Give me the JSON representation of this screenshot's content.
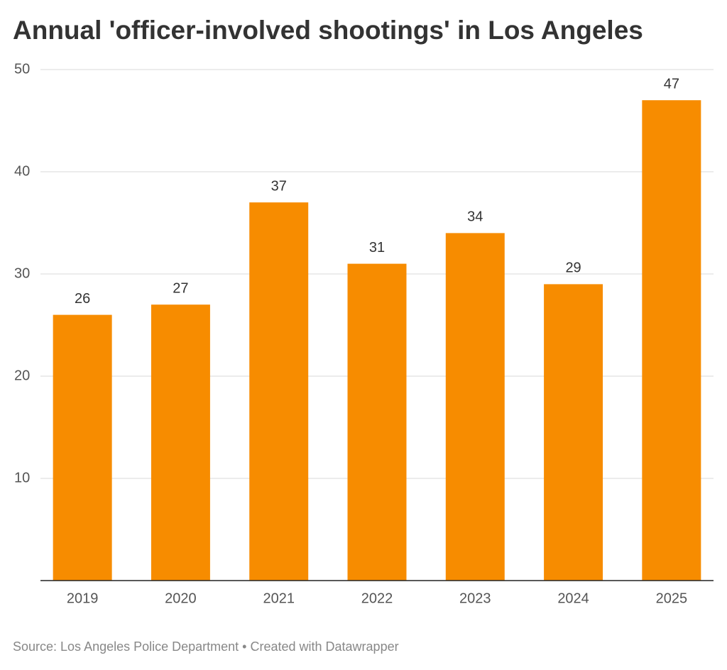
{
  "chart_data": {
    "type": "bar",
    "title": "Annual 'officer-involved shootings' in Los Angeles",
    "categories": [
      "2019",
      "2020",
      "2021",
      "2022",
      "2023",
      "2024",
      "2025"
    ],
    "values": [
      26,
      27,
      37,
      31,
      34,
      29,
      47
    ],
    "color": "#f78c00",
    "ylim": [
      0,
      50
    ],
    "yticks": [
      10,
      20,
      30,
      40,
      50
    ],
    "grid": true,
    "source": "Source: Los Angeles Police Department • Created with Datawrapper"
  }
}
